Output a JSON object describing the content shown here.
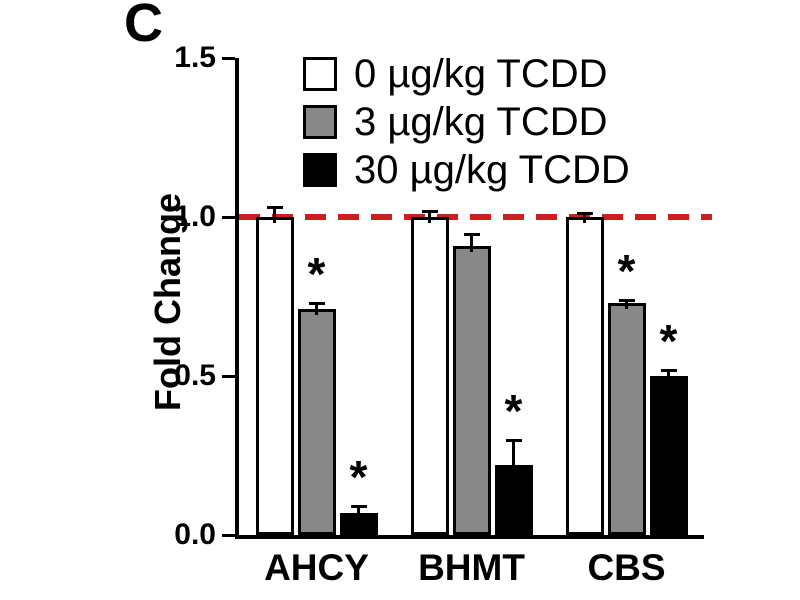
{
  "panel_label": "C",
  "chart_data": {
    "type": "bar",
    "title": "",
    "ylabel": "Fold Change",
    "xlabel": "",
    "ylim": [
      0.0,
      1.5
    ],
    "yticks": [
      0.0,
      0.5,
      1.0,
      1.5
    ],
    "grid": false,
    "legend_position": "top-inside",
    "categories": [
      "AHCY",
      "BHMT",
      "CBS"
    ],
    "series": [
      {
        "name": "0 µg/kg TCDD",
        "color": "#ffffff",
        "values": [
          1.0,
          1.0,
          1.0
        ],
        "errors": [
          0.03,
          0.02,
          0.012
        ],
        "significant": [
          false,
          false,
          false
        ]
      },
      {
        "name": "3 µg/kg TCDD",
        "color": "#888888",
        "values": [
          0.71,
          0.91,
          0.73
        ],
        "errors": [
          0.02,
          0.035,
          0.01
        ],
        "significant": [
          true,
          false,
          true
        ]
      },
      {
        "name": "30 µg/kg TCDD",
        "color": "#000000",
        "values": [
          0.07,
          0.22,
          0.5
        ],
        "errors": [
          0.02,
          0.08,
          0.02
        ],
        "significant": [
          true,
          true,
          true
        ]
      }
    ],
    "reference_line": {
      "y": 1.0,
      "color": "#cf1d1d",
      "style": "dashed"
    },
    "significance_marker": "*"
  }
}
